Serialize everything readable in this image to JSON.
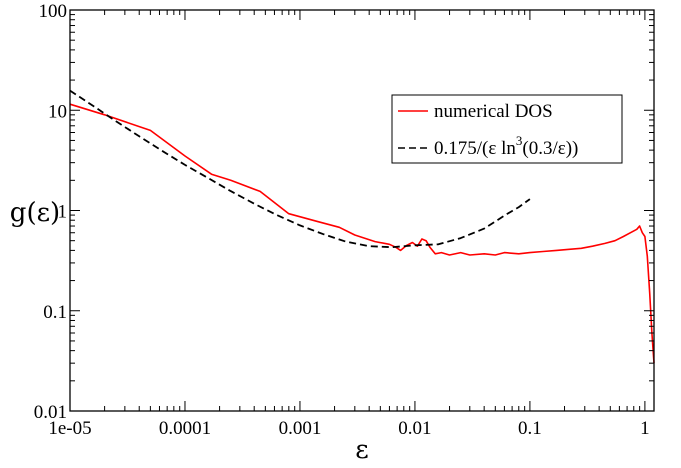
{
  "chart_data": {
    "type": "line",
    "title": "",
    "xlabel": "ε",
    "ylabel": "g(ε)",
    "xscale": "log",
    "yscale": "log",
    "xlim": [
      1e-05,
      1.2
    ],
    "ylim": [
      0.01,
      100
    ],
    "grid": false,
    "legend_position": "top-right",
    "x_ticks": [
      {
        "value": 1e-05,
        "label": "1e-05"
      },
      {
        "value": 0.0001,
        "label": "0.0001"
      },
      {
        "value": 0.001,
        "label": "0.001"
      },
      {
        "value": 0.01,
        "label": "0.01"
      },
      {
        "value": 0.1,
        "label": "0.1"
      },
      {
        "value": 1,
        "label": "1"
      }
    ],
    "y_ticks": [
      {
        "value": 0.01,
        "label": "0.01"
      },
      {
        "value": 0.1,
        "label": "0.1"
      },
      {
        "value": 1,
        "label": "1"
      },
      {
        "value": 10,
        "label": "10"
      },
      {
        "value": 100,
        "label": "100"
      }
    ],
    "series": [
      {
        "name": "numerical DOS",
        "color": "#ff0000",
        "dash": "solid",
        "x": [
          1e-05,
          2e-05,
          5e-05,
          0.0001,
          0.00017,
          0.00025,
          0.00045,
          0.0008,
          0.0014,
          0.0022,
          0.003,
          0.0045,
          0.006,
          0.0068,
          0.0075,
          0.0085,
          0.0095,
          0.0105,
          0.0115,
          0.0125,
          0.0135,
          0.015,
          0.017,
          0.02,
          0.025,
          0.03,
          0.04,
          0.05,
          0.06,
          0.08,
          0.1,
          0.13,
          0.17,
          0.22,
          0.28,
          0.35,
          0.45,
          0.55,
          0.65,
          0.75,
          0.85,
          0.9,
          0.95,
          1.0,
          1.05,
          1.1,
          1.15,
          1.2
        ],
        "y": [
          11.5,
          9.0,
          6.3,
          3.5,
          2.3,
          2.0,
          1.55,
          0.93,
          0.78,
          0.68,
          0.57,
          0.49,
          0.46,
          0.43,
          0.4,
          0.45,
          0.48,
          0.44,
          0.52,
          0.5,
          0.43,
          0.37,
          0.38,
          0.36,
          0.38,
          0.36,
          0.37,
          0.36,
          0.38,
          0.37,
          0.38,
          0.39,
          0.4,
          0.41,
          0.42,
          0.44,
          0.47,
          0.5,
          0.55,
          0.6,
          0.65,
          0.7,
          0.6,
          0.55,
          0.35,
          0.15,
          0.06,
          0.03
        ]
      },
      {
        "name": "0.175/(ε ln³(0.3/ε))",
        "color": "#000000",
        "dash": "dashed",
        "x": [
          1e-05,
          1.6e-05,
          2.5e-05,
          4e-05,
          6.3e-05,
          0.0001,
          0.00016,
          0.00025,
          0.0004,
          0.00063,
          0.001,
          0.0016,
          0.0025,
          0.004,
          0.0063,
          0.01,
          0.016,
          0.025,
          0.04,
          0.063,
          0.08,
          0.1
        ],
        "y": [
          15.7,
          11.0,
          7.8,
          5.5,
          3.95,
          2.85,
          2.1,
          1.56,
          1.17,
          0.9,
          0.71,
          0.58,
          0.49,
          0.44,
          0.43,
          0.45,
          0.46,
          0.53,
          0.66,
          0.92,
          1.08,
          1.3
        ]
      }
    ]
  },
  "legend": {
    "entries": [
      {
        "text": "numerical DOS",
        "color": "#ff0000",
        "dash": "solid"
      },
      {
        "base": "0.175/(ε ln",
        "sup": "3",
        "tail": "(0.3/ε))",
        "color": "#000000",
        "dash": "dashed"
      }
    ]
  }
}
